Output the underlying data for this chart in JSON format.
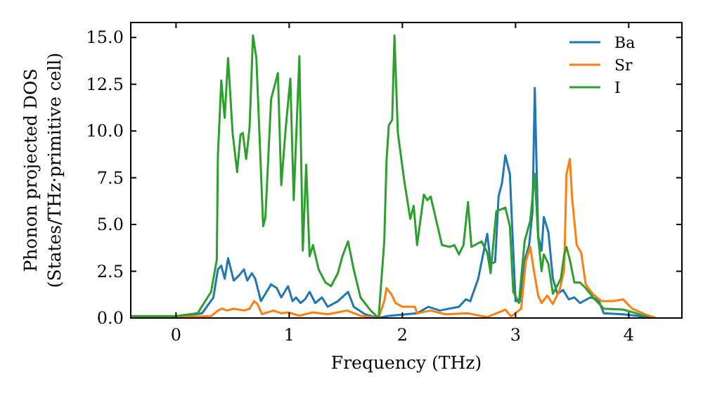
{
  "chart_data": {
    "type": "line",
    "xlabel": "Frequency (THz)",
    "ylabel": "Phonon projected DOS\n(States/THz·primitive cell)",
    "xlim": [
      -0.4,
      4.47
    ],
    "ylim": [
      0,
      15.8
    ],
    "xticks": [
      0,
      1,
      2,
      3,
      4
    ],
    "yticks": [
      {
        "value": 0,
        "label": "0.0"
      },
      {
        "value": 2.5,
        "label": "2.5"
      },
      {
        "value": 5,
        "label": "5.0"
      },
      {
        "value": 7.5,
        "label": "7.5"
      },
      {
        "value": 10,
        "label": "10.0"
      },
      {
        "value": 12.5,
        "label": "12.5"
      },
      {
        "value": 15,
        "label": "15.0"
      }
    ],
    "grid": false,
    "legend": "top right",
    "marker": "none",
    "line_style": "solid",
    "series": [
      {
        "name": "Ba",
        "color": "#1f77b4",
        "x": [
          -0.4,
          0,
          0.23,
          0.33,
          0.37,
          0.4,
          0.43,
          0.46,
          0.51,
          0.56,
          0.6,
          0.63,
          0.67,
          0.7,
          0.75,
          0.79,
          0.84,
          0.89,
          0.93,
          0.99,
          1.03,
          1.06,
          1.1,
          1.14,
          1.18,
          1.23,
          1.29,
          1.34,
          1.43,
          1.52,
          1.57,
          1.67,
          1.79,
          1.86,
          2.13,
          2.23,
          2.33,
          2.5,
          2.56,
          2.6,
          2.67,
          2.75,
          2.78,
          2.82,
          2.85,
          2.88,
          2.91,
          2.95,
          2.97,
          3.0,
          3.04,
          3.08,
          3.12,
          3.15,
          3.17,
          3.2,
          3.23,
          3.25,
          3.29,
          3.33,
          3.37,
          3.42,
          3.47,
          3.52,
          3.57,
          3.66,
          3.73,
          3.78,
          3.95,
          4.07,
          4.19
        ],
        "values": [
          0.05,
          0.05,
          0.25,
          1.1,
          2.6,
          2.8,
          2.1,
          3.2,
          2.0,
          2.3,
          2.6,
          2.0,
          2.4,
          2.1,
          0.9,
          1.3,
          1.8,
          1.6,
          1.1,
          1.7,
          0.9,
          1.1,
          0.8,
          1.0,
          1.4,
          0.8,
          1.1,
          0.6,
          0.9,
          1.4,
          0.6,
          0.2,
          0,
          0.1,
          0.25,
          0.6,
          0.4,
          0.6,
          1.0,
          0.9,
          2.1,
          4.5,
          2.9,
          3.0,
          6.5,
          7.2,
          8.7,
          7.7,
          4.9,
          0.9,
          0.9,
          3.1,
          3.9,
          5.7,
          12.3,
          4.4,
          3.6,
          5.4,
          4.6,
          2.1,
          1.3,
          1.5,
          1.0,
          1.1,
          0.8,
          1.1,
          1.0,
          0.25,
          0.2,
          0.12,
          0
        ]
      },
      {
        "name": "Sr",
        "color": "#ff7f0e",
        "x": [
          -0.4,
          0,
          0.31,
          0.37,
          0.41,
          0.45,
          0.51,
          0.6,
          0.65,
          0.69,
          0.72,
          0.76,
          0.86,
          0.93,
          0.99,
          1.09,
          1.21,
          1.34,
          1.51,
          1.63,
          1.79,
          1.84,
          1.86,
          1.9,
          1.94,
          2.0,
          2.11,
          2.13,
          2.25,
          2.38,
          2.58,
          2.75,
          2.83,
          2.91,
          2.96,
          3.05,
          3.09,
          3.13,
          3.16,
          3.2,
          3.23,
          3.28,
          3.33,
          3.39,
          3.43,
          3.45,
          3.48,
          3.5,
          3.54,
          3.58,
          3.62,
          3.68,
          3.76,
          3.86,
          3.95,
          4.03,
          4.15,
          4.24
        ],
        "values": [
          0.05,
          0.05,
          0.1,
          0.4,
          0.5,
          0.4,
          0.5,
          0.4,
          0.5,
          0.9,
          0.75,
          0.2,
          0.4,
          0.25,
          0.3,
          0.12,
          0.3,
          0.2,
          0.4,
          0.12,
          0,
          0.9,
          1.6,
          1.3,
          0.8,
          0.6,
          0.6,
          0.25,
          0.4,
          0.2,
          0.25,
          0.05,
          0.25,
          0.45,
          0.08,
          0.5,
          3.0,
          3.8,
          2.6,
          1.2,
          0.8,
          1.2,
          0.75,
          1.5,
          2.6,
          7.7,
          8.5,
          6.4,
          3.9,
          3.5,
          1.8,
          1.3,
          0.9,
          0.9,
          1.0,
          0.5,
          0.18,
          0
        ]
      },
      {
        "name": "I",
        "color": "#2ca02c",
        "x": [
          -0.4,
          0,
          0.19,
          0.31,
          0.36,
          0.37,
          0.4,
          0.43,
          0.46,
          0.5,
          0.54,
          0.57,
          0.59,
          0.62,
          0.65,
          0.68,
          0.71,
          0.77,
          0.79,
          0.84,
          0.9,
          0.93,
          0.97,
          1.01,
          1.04,
          1.09,
          1.12,
          1.15,
          1.18,
          1.21,
          1.26,
          1.32,
          1.37,
          1.43,
          1.47,
          1.52,
          1.57,
          1.63,
          1.72,
          1.79,
          1.84,
          1.86,
          1.88,
          1.91,
          1.93,
          1.96,
          2.02,
          2.07,
          2.1,
          2.13,
          2.19,
          2.22,
          2.25,
          2.35,
          2.42,
          2.46,
          2.5,
          2.54,
          2.58,
          2.61,
          2.7,
          2.75,
          2.78,
          2.83,
          2.91,
          2.95,
          2.98,
          3.03,
          3.08,
          3.13,
          3.17,
          3.2,
          3.23,
          3.25,
          3.29,
          3.33,
          3.4,
          3.43,
          3.45,
          3.48,
          3.52,
          3.57,
          3.62,
          3.7,
          3.78,
          3.95,
          4.07,
          4.19
        ],
        "values": [
          0.1,
          0.1,
          0.25,
          1.4,
          3.1,
          8.7,
          12.7,
          10.7,
          13.9,
          9.9,
          7.8,
          9.8,
          9.9,
          8.5,
          10.2,
          15.1,
          13.9,
          4.9,
          5.4,
          11.7,
          13.1,
          7.1,
          10.2,
          12.8,
          6.3,
          14.0,
          3.6,
          8.2,
          3.3,
          3.9,
          2.6,
          1.9,
          1.7,
          2.4,
          3.3,
          4.1,
          2.6,
          1.1,
          0.4,
          0,
          4.1,
          8.4,
          10.3,
          10.6,
          15.1,
          9.9,
          7.2,
          5.3,
          6.0,
          3.9,
          6.6,
          6.3,
          6.5,
          3.9,
          3.8,
          3.9,
          3.4,
          3.9,
          6.2,
          3.8,
          4.1,
          3.5,
          2.4,
          5.7,
          5.9,
          4.9,
          1.4,
          0.8,
          4.1,
          5.2,
          7.7,
          4.3,
          2.5,
          3.4,
          2.9,
          1.3,
          2.1,
          3.4,
          3.8,
          3.1,
          1.9,
          1.9,
          1.6,
          1.0,
          0.5,
          0.45,
          0.25,
          0
        ]
      }
    ]
  }
}
